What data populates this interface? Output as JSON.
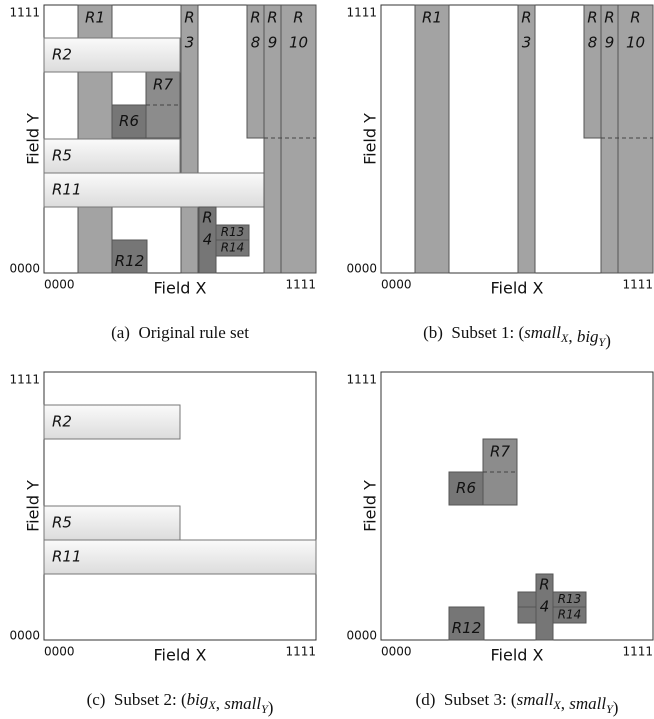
{
  "panels": [
    {
      "caption": [
        {
          "text": "(a)  Original rule set"
        }
      ],
      "x_axis_label": "Field X",
      "y_axis_label": "Field Y",
      "x_ticks": [
        "0000",
        "1111"
      ],
      "y_ticks": [
        "0000",
        "1111"
      ],
      "rules": [
        [
          "R1"
        ],
        [
          "R",
          "3"
        ],
        [
          "R",
          "8"
        ],
        [
          "R7"
        ],
        [
          "R6"
        ],
        [
          "R2"
        ],
        [
          "R5"
        ],
        [
          "R11"
        ],
        [
          "R",
          "9"
        ],
        [
          "R",
          "10"
        ],
        [
          "R",
          "4"
        ],
        [
          "R13"
        ],
        [
          "R14"
        ],
        [
          "R12"
        ]
      ]
    },
    {
      "caption": [
        {
          "text": "(b)  Subset 1: ("
        },
        {
          "italic": "small",
          "sub": "X"
        },
        {
          "text": ", "
        },
        {
          "italic": "big",
          "sub": "Y"
        },
        {
          "text": ")"
        }
      ],
      "x_axis_label": "Field X",
      "y_axis_label": "Field Y",
      "x_ticks": [
        "0000",
        "1111"
      ],
      "y_ticks": [
        "0000",
        "1111"
      ],
      "rules": [
        [
          "R1"
        ],
        [
          "R",
          "3"
        ],
        [
          "R",
          "8"
        ],
        [
          "R",
          "9"
        ],
        [
          "R",
          "10"
        ]
      ]
    },
    {
      "caption": [
        {
          "text": "(c)  Subset 2: ("
        },
        {
          "italic": "big",
          "sub": "X"
        },
        {
          "text": ", "
        },
        {
          "italic": "small",
          "sub": "Y"
        },
        {
          "text": ")"
        }
      ],
      "x_axis_label": "Field X",
      "y_axis_label": "Field Y",
      "x_ticks": [
        "0000",
        "1111"
      ],
      "y_ticks": [
        "0000",
        "1111"
      ],
      "rules": [
        [
          "R2"
        ],
        [
          "R5"
        ],
        [
          "R11"
        ]
      ]
    },
    {
      "caption": [
        {
          "text": "(d)  Subset 3: ("
        },
        {
          "italic": "small",
          "sub": "X"
        },
        {
          "text": ", "
        },
        {
          "italic": "small",
          "sub": "Y"
        },
        {
          "text": ")"
        }
      ],
      "x_axis_label": "Field X",
      "y_axis_label": "Field Y",
      "x_ticks": [
        "0000",
        "1111"
      ],
      "y_ticks": [
        "0000",
        "1111"
      ],
      "rules": [
        [
          "R7"
        ],
        [
          "R6"
        ],
        [
          "R",
          "4"
        ],
        [
          "R13"
        ],
        [
          "R14"
        ],
        [
          "R12"
        ]
      ]
    }
  ]
}
